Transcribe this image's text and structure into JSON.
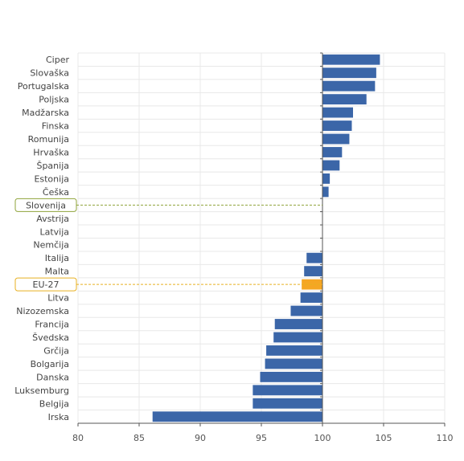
{
  "chart_data": {
    "type": "bar",
    "orientation": "horizontal",
    "title": "",
    "xlabel": "",
    "ylabel": "",
    "baseline": 100,
    "xlim": [
      80,
      110
    ],
    "xticks": [
      80,
      85,
      90,
      95,
      100,
      105,
      110
    ],
    "grid": true,
    "categories": [
      "Ciper",
      "Slovaška",
      "Portugalska",
      "Poljska",
      "Madžarska",
      "Finska",
      "Romunija",
      "Hrvaška",
      "Španija",
      "Estonija",
      "Češka",
      "Slovenija",
      "Avstrija",
      "Latvija",
      "Nemčija",
      "Italija",
      "Malta",
      "EU-27",
      "Litva",
      "Nizozemska",
      "Francija",
      "Švedska",
      "Grčija",
      "Bolgarija",
      "Danska",
      "Luksemburg",
      "Belgija",
      "Irska"
    ],
    "values": [
      104.7,
      104.4,
      104.3,
      103.6,
      102.5,
      102.4,
      102.2,
      101.6,
      101.4,
      100.6,
      100.5,
      100.0,
      100.0,
      100.0,
      100.0,
      98.7,
      98.5,
      98.3,
      98.2,
      97.4,
      96.1,
      96.0,
      95.4,
      95.3,
      94.9,
      94.3,
      94.3,
      86.1
    ],
    "highlight": {
      "Slovenija": "#c9b24a",
      "EU-27": "#f5a623"
    },
    "colors": {
      "bar": "#3b66a8",
      "highlight_bar": "#f5a623",
      "slovenia_box": "#8fa33a",
      "eu_box": "#e8b020",
      "grid": "#e8e8e8",
      "axis": "#555555"
    }
  }
}
